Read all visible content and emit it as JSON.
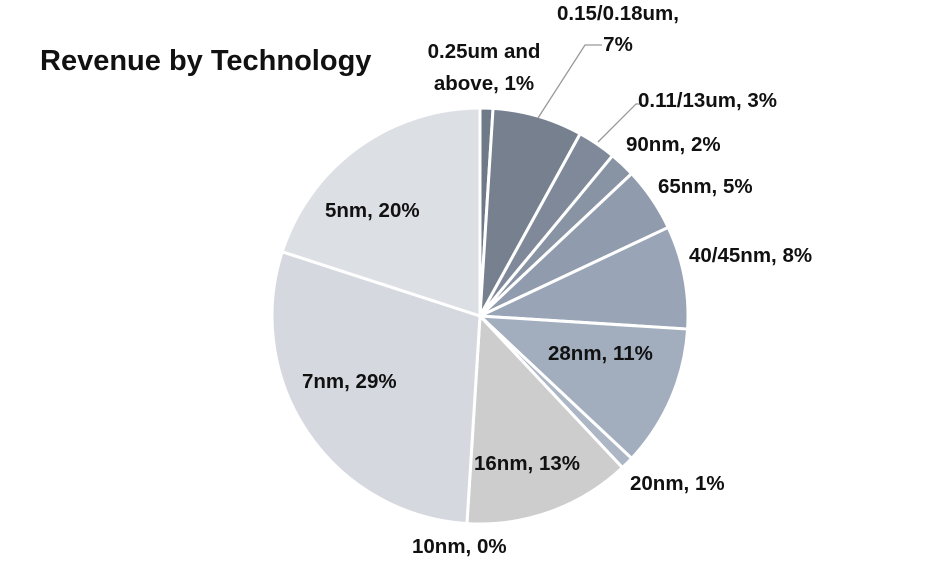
{
  "chart_data": {
    "type": "pie",
    "title": "Revenue by Technology",
    "slices": [
      {
        "label": "0.25um and above, 1%",
        "category": "0.25um and above",
        "value": 1,
        "color": "#6f7a89"
      },
      {
        "label": "0.15/0.18um, 7%",
        "category": "0.15/0.18um",
        "value": 7,
        "color": "#76808f"
      },
      {
        "label": "0.11/13um, 3%",
        "category": "0.11/13um",
        "value": 3,
        "color": "#7f8999"
      },
      {
        "label": "90nm, 2%",
        "category": "90nm",
        "value": 2,
        "color": "#8893a3"
      },
      {
        "label": "65nm, 5%",
        "category": "65nm",
        "value": 5,
        "color": "#909cad"
      },
      {
        "label": "40/45nm, 8%",
        "category": "40/45nm",
        "value": 8,
        "color": "#99a5b6"
      },
      {
        "label": "28nm, 11%",
        "category": "28nm",
        "value": 11,
        "color": "#a2adbd"
      },
      {
        "label": "20nm, 1%",
        "category": "20nm",
        "value": 1,
        "color": "#acb6c4"
      },
      {
        "label": "10nm, 0%",
        "category": "10nm",
        "value": 0,
        "color": "#bbbbbb"
      },
      {
        "label": "16nm, 13%",
        "category": "16nm",
        "value": 13,
        "color": "#cdcdcd"
      },
      {
        "label": "7nm, 29%",
        "category": "7nm",
        "value": 29,
        "color": "#d5d9df"
      },
      {
        "label": "5nm, 20%",
        "category": "5nm",
        "value": 20,
        "color": "#dcdfe4"
      }
    ]
  }
}
